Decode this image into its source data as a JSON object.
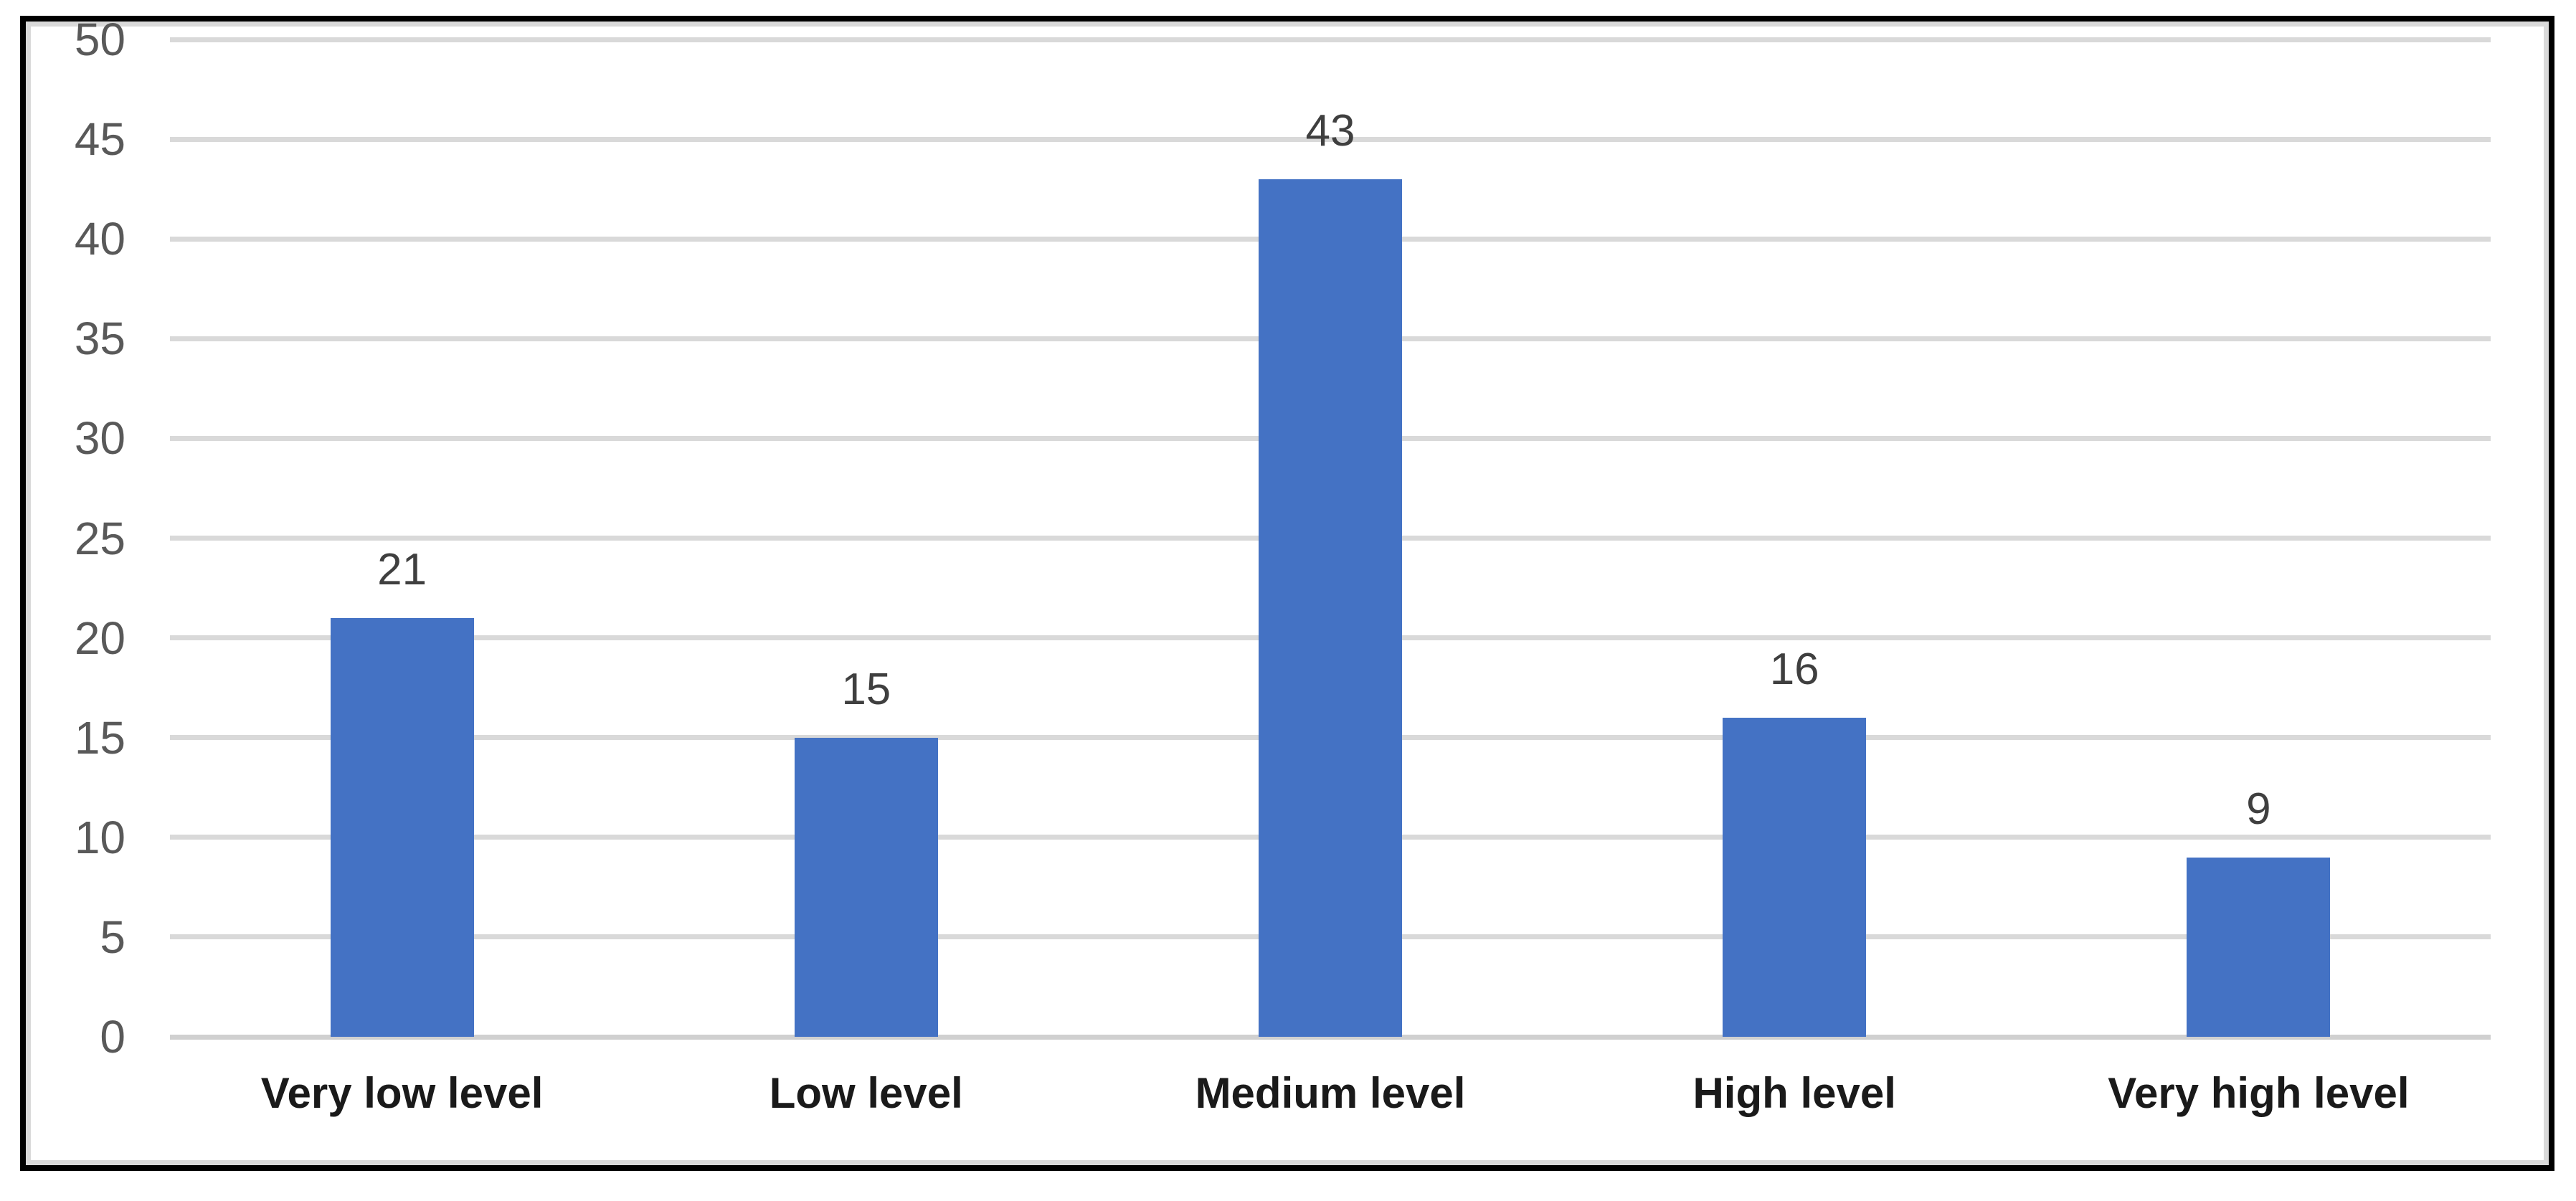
{
  "chart_data": {
    "type": "bar",
    "title": "",
    "xlabel": "",
    "ylabel": "",
    "categories": [
      "Very low level",
      "Low level",
      "Medium level",
      "High level",
      "Very high level"
    ],
    "values": [
      21,
      15,
      43,
      16,
      9
    ],
    "data_labels": [
      "21",
      "15",
      "43",
      "16",
      "9"
    ],
    "ylim": [
      0,
      50
    ],
    "ytick_step": 5,
    "yticks": [
      0,
      5,
      10,
      15,
      20,
      25,
      30,
      35,
      40,
      45,
      50
    ],
    "grid": true,
    "legend": false,
    "colors": {
      "bar_fill": "#4472C4",
      "gridline": "#d9d9d9",
      "axis_line": "#d0d0d0",
      "y_tick_label": "#595959",
      "bar_value_label": "#3f3f3f",
      "category_label": "#1a1a1a",
      "figure_border": "#000000",
      "chart_frame_border": "#d9d9d9",
      "background": "#ffffff"
    }
  }
}
